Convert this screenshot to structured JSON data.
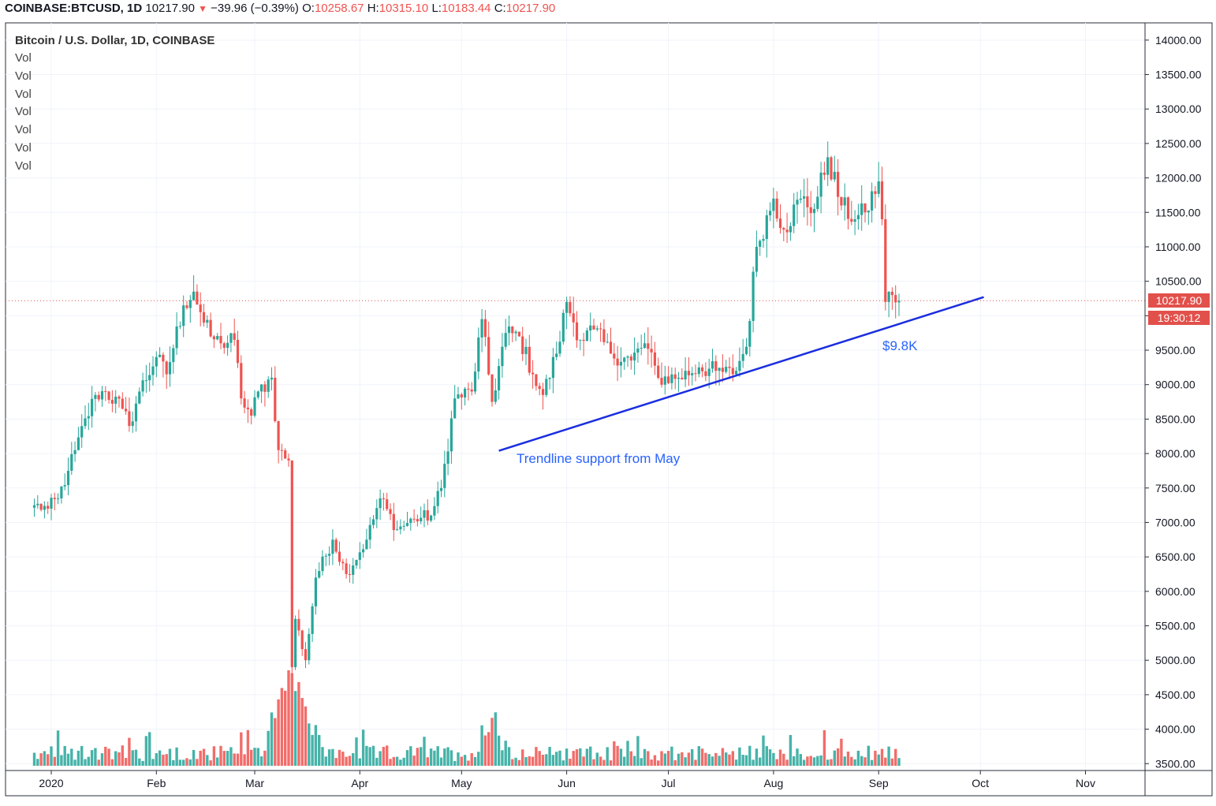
{
  "header": {
    "symbol": "COINBASE:BTCUSD, 1D",
    "last": "10217.90",
    "change": "−39.96 (−0.39%)",
    "open_label": "O:",
    "open": "10258.67",
    "high_label": "H:",
    "high": "10315.10",
    "low_label": "L:",
    "low": "10183.44",
    "close_label": "C:",
    "close": "10217.90"
  },
  "legend": {
    "title": "Bitcoin / U.S. Dollar, 1D, COINBASE",
    "volume_rows": [
      "Vol",
      "Vol",
      "Vol",
      "Vol",
      "Vol",
      "Vol",
      "Vol"
    ]
  },
  "price_tags": {
    "last_price": "10217.90",
    "countdown": "19:30:12"
  },
  "annotations": {
    "trendline_label": "Trendline support from May",
    "level_label": "$9.8K"
  },
  "colors": {
    "up": "#26a69a",
    "down": "#ef5350",
    "trendline": "#1a2ee0",
    "annotation": "#2962ff",
    "price_tag": "#e2504b",
    "grid": "#f0f3fa"
  },
  "chart_data": {
    "type": "candlestick",
    "title": "Bitcoin / U.S. Dollar, 1D, COINBASE",
    "x_tick_labels": [
      "2020",
      "Feb",
      "Mar",
      "Apr",
      "May",
      "Jun",
      "Jul",
      "Aug",
      "Sep",
      "Oct",
      "Nov"
    ],
    "y_tick_labels": [
      "14000.00",
      "13500.00",
      "13000.00",
      "12500.00",
      "12000.00",
      "11500.00",
      "11000.00",
      "10500.00",
      "10000.00",
      "9500.00",
      "9000.00",
      "8500.00",
      "8000.00",
      "7500.00",
      "7000.00",
      "6500.00",
      "6000.00",
      "5500.00",
      "5000.00",
      "4500.00",
      "4000.00",
      "3500.00"
    ],
    "ylim": [
      3400,
      14250
    ],
    "grid": true,
    "axis_position": "right",
    "close_waypoints": [
      [
        "2019-12-27",
        7250
      ],
      [
        "2019-12-31",
        7200
      ],
      [
        "2020-01-03",
        7350
      ],
      [
        "2020-01-06",
        7750
      ],
      [
        "2020-01-08",
        8050
      ],
      [
        "2020-01-14",
        8850
      ],
      [
        "2020-01-17",
        8900
      ],
      [
        "2020-01-22",
        8650
      ],
      [
        "2020-01-24",
        8400
      ],
      [
        "2020-01-27",
        8900
      ],
      [
        "2020-02-01",
        9400
      ],
      [
        "2020-02-04",
        9150
      ],
      [
        "2020-02-09",
        10150
      ],
      [
        "2020-02-12",
        10350
      ],
      [
        "2020-02-15",
        9900
      ],
      [
        "2020-02-17",
        9700
      ],
      [
        "2020-02-20",
        9600
      ],
      [
        "2020-02-24",
        9650
      ],
      [
        "2020-02-26",
        8800
      ],
      [
        "2020-02-29",
        8550
      ],
      [
        "2020-03-02",
        8900
      ],
      [
        "2020-03-06",
        9100
      ],
      [
        "2020-03-08",
        8050
      ],
      [
        "2020-03-11",
        7900
      ],
      [
        "2020-03-12",
        4900
      ],
      [
        "2020-03-13",
        5600
      ],
      [
        "2020-03-16",
        5000
      ],
      [
        "2020-03-19",
        6200
      ],
      [
        "2020-03-24",
        6750
      ],
      [
        "2020-03-28",
        6250
      ],
      [
        "2020-04-03",
        6750
      ],
      [
        "2020-04-07",
        7350
      ],
      [
        "2020-04-12",
        6900
      ],
      [
        "2020-04-17",
        7050
      ],
      [
        "2020-04-22",
        7100
      ],
      [
        "2020-04-25",
        7500
      ],
      [
        "2020-04-29",
        8800
      ],
      [
        "2020-05-04",
        8900
      ],
      [
        "2020-05-07",
        9950
      ],
      [
        "2020-05-10",
        8750
      ],
      [
        "2020-05-14",
        9750
      ],
      [
        "2020-05-18",
        9700
      ],
      [
        "2020-05-22",
        9150
      ],
      [
        "2020-05-25",
        8850
      ],
      [
        "2020-05-29",
        9450
      ],
      [
        "2020-06-01",
        10200
      ],
      [
        "2020-06-05",
        9650
      ],
      [
        "2020-06-09",
        9800
      ],
      [
        "2020-06-14",
        9450
      ],
      [
        "2020-06-20",
        9350
      ],
      [
        "2020-06-24",
        9600
      ],
      [
        "2020-06-28",
        9100
      ],
      [
        "2020-07-04",
        9100
      ],
      [
        "2020-07-10",
        9250
      ],
      [
        "2020-07-15",
        9200
      ],
      [
        "2020-07-20",
        9150
      ],
      [
        "2020-07-24",
        9550
      ],
      [
        "2020-07-27",
        11000
      ],
      [
        "2020-08-01",
        11700
      ],
      [
        "2020-08-04",
        11250
      ],
      [
        "2020-08-09",
        11700
      ],
      [
        "2020-08-13",
        11550
      ],
      [
        "2020-08-17",
        12300
      ],
      [
        "2020-08-21",
        11600
      ],
      [
        "2020-08-25",
        11400
      ],
      [
        "2020-08-28",
        11500
      ],
      [
        "2020-09-01",
        11950
      ],
      [
        "2020-09-02",
        11400
      ],
      [
        "2020-09-03",
        10200
      ],
      [
        "2020-09-05",
        10300
      ],
      [
        "2020-09-07",
        10217.9
      ]
    ],
    "volume_pattern": "typical daily volume; spike mid-March 2020 and mid-May 2020",
    "trendline": {
      "start": [
        "2020-05-12",
        8040
      ],
      "end": [
        "2020-10-02",
        10270
      ],
      "label": "Trendline support from May"
    },
    "level_annotation": {
      "date": "2020-09-08",
      "value": 9800,
      "label": "$9.8K"
    },
    "last_price": 10217.9
  }
}
